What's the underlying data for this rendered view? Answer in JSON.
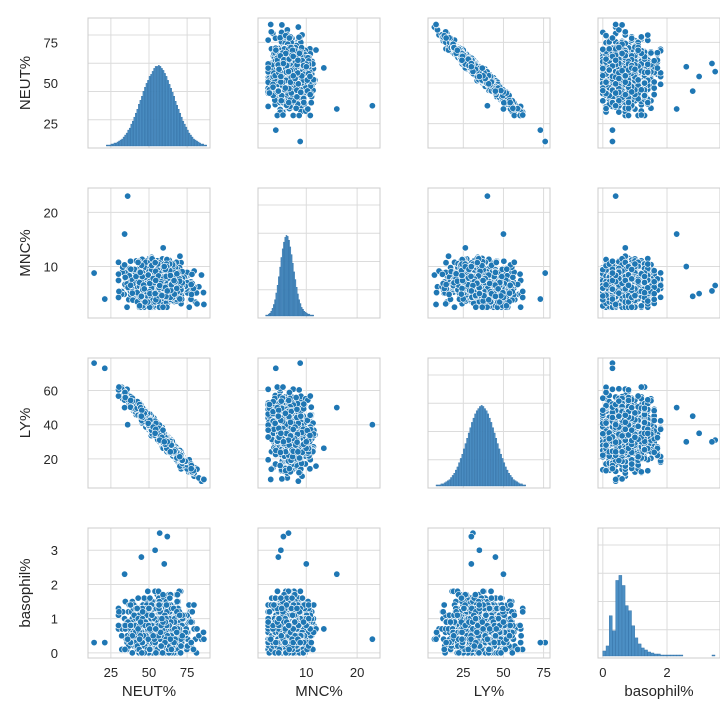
{
  "chart_data": {
    "type": "scatter",
    "subtype": "pairplot",
    "color": "#1f77b4",
    "grid": true,
    "variables": [
      "NEUT%",
      "MNC%",
      "LY%",
      "basophil%"
    ],
    "axis_labels": {
      "x": [
        "NEUT%",
        "MNC%",
        "LY%",
        "basophil%"
      ],
      "y": [
        "NEUT%",
        "MNC%",
        "LY%",
        "basophil%"
      ]
    },
    "ranges": {
      "NEUT%": [
        10,
        90
      ],
      "MNC%": [
        0.5,
        24.5
      ],
      "LY%": [
        3,
        79
      ],
      "basophil%": [
        -0.15,
        3.65
      ]
    },
    "ticks": {
      "NEUT%": [
        25,
        50,
        75
      ],
      "MNC%": [
        10,
        20
      ],
      "LY%": [
        20,
        40,
        60
      ],
      "basophil%": [
        0,
        1,
        2,
        3
      ]
    },
    "x_ticks": {
      "NEUT%": [
        25,
        50,
        75
      ],
      "MNC%": [
        10,
        20
      ],
      "LY%": [
        25,
        50,
        75
      ],
      "basophil%": [
        0,
        2
      ]
    },
    "distributions": {
      "NEUT%": {
        "mean": 56,
        "sd": 9,
        "min": 14,
        "max": 88
      },
      "MNC%": {
        "mean": 7.0,
        "sd": 1.8,
        "min": 2,
        "max": 23
      },
      "LY%": {
        "mean": 33,
        "sd": 8,
        "min": 7,
        "max": 76
      },
      "basophil%": {
        "mean": 0.7,
        "sd": 0.4,
        "min": 0,
        "max": 3.5
      }
    },
    "histograms": {
      "NEUT%": {
        "bin_start": 22,
        "bin_width": 1,
        "counts": [
          1,
          1,
          1,
          2,
          2,
          3,
          3,
          4,
          5,
          6,
          7,
          9,
          11,
          13,
          16,
          18,
          22,
          25,
          29,
          33,
          37,
          42,
          46,
          50,
          55,
          59,
          63,
          66,
          70,
          72,
          75,
          78,
          80,
          80,
          81,
          80,
          78,
          76,
          73,
          70,
          66,
          62,
          58,
          54,
          50,
          45,
          41,
          37,
          33,
          29,
          25,
          22,
          19,
          16,
          13,
          11,
          9,
          7,
          6,
          5,
          4,
          3,
          2,
          2,
          1,
          1
        ]
      },
      "MNC%": {
        "bin_start": 2,
        "bin_width": 0.25,
        "counts": [
          1,
          1,
          2,
          3,
          5,
          8,
          12,
          17,
          24,
          32,
          41,
          51,
          61,
          70,
          77,
          82,
          84,
          83,
          79,
          72,
          64,
          55,
          46,
          38,
          30,
          23,
          17,
          13,
          9,
          7,
          5,
          4,
          3,
          2,
          2,
          1,
          1,
          1
        ]
      },
      "LY%": {
        "bin_start": 8,
        "bin_width": 1,
        "counts": [
          1,
          1,
          1,
          2,
          2,
          3,
          4,
          5,
          6,
          8,
          10,
          12,
          15,
          18,
          22,
          26,
          30,
          35,
          40,
          45,
          50,
          55,
          60,
          64,
          68,
          71,
          73,
          75,
          76,
          75,
          73,
          71,
          68,
          64,
          60,
          55,
          50,
          45,
          40,
          35,
          30,
          26,
          22,
          18,
          15,
          12,
          10,
          8,
          6,
          5,
          4,
          3,
          2,
          2,
          1,
          1
        ]
      },
      "basophil%": {
        "bin_start": 0,
        "bin_width": 0.1,
        "counts": [
          5,
          10,
          40,
          25,
          75,
          80,
          70,
          50,
          45,
          30,
          18,
          12,
          8,
          6,
          4,
          3,
          2,
          2,
          1,
          1,
          1,
          1,
          1,
          1,
          1,
          0,
          0,
          0,
          0,
          0,
          0,
          0,
          0,
          0,
          1
        ]
      }
    },
    "outliers": [
      {
        "NEUT%": 14,
        "MNC%": 8.8,
        "LY%": 76,
        "basophil%": 0.3
      },
      {
        "NEUT%": 21,
        "MNC%": 4.0,
        "LY%": 73,
        "basophil%": 0.3
      },
      {
        "NEUT%": 36,
        "MNC%": 23.0,
        "LY%": 40,
        "basophil%": 0.4
      },
      {
        "NEUT%": 57,
        "MNC%": 6.5,
        "LY%": 31,
        "basophil%": 3.5
      },
      {
        "NEUT%": 62,
        "MNC%": 5.5,
        "LY%": 30,
        "basophil%": 3.4
      },
      {
        "NEUT%": 54,
        "MNC%": 5.0,
        "LY%": 35,
        "basophil%": 3.0
      },
      {
        "NEUT%": 86,
        "MNC%": 3.0,
        "LY%": 8,
        "basophil%": 0.4
      },
      {
        "NEUT%": 34,
        "MNC%": 16.0,
        "LY%": 50,
        "basophil%": 2.3
      },
      {
        "NEUT%": 60,
        "MNC%": 10.0,
        "LY%": 30,
        "basophil%": 2.6
      },
      {
        "NEUT%": 45,
        "MNC%": 4.5,
        "LY%": 45,
        "basophil%": 2.8
      }
    ]
  }
}
